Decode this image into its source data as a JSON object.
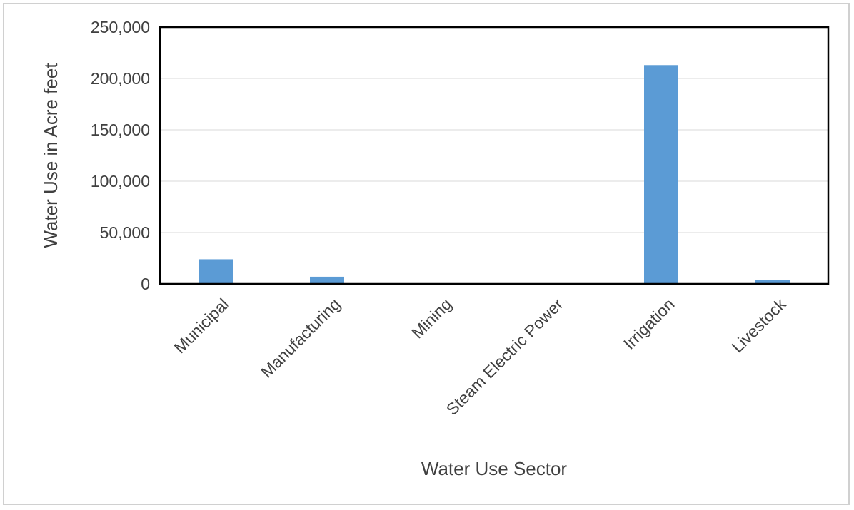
{
  "chart_data": {
    "type": "bar",
    "title": "",
    "xlabel": "Water Use Sector",
    "ylabel": "Water Use in Acre feet",
    "categories": [
      "Municipal",
      "Manufacturing",
      "Mining",
      "Steam Electric Power",
      "Irrigation",
      "Livestock"
    ],
    "values": [
      24000,
      7000,
      0,
      0,
      213000,
      4000
    ],
    "ylim": [
      0,
      250000
    ],
    "yticks": [
      0,
      50000,
      100000,
      150000,
      200000,
      250000
    ],
    "ytick_labels": [
      "0",
      "50,000",
      "100,000",
      "150,000",
      "200,000",
      "250,000"
    ],
    "grid": true,
    "legend": "none",
    "bar_color": "#5b9bd5",
    "gridline_color": "#d9d9d9",
    "plot_border_color": "#000000"
  }
}
